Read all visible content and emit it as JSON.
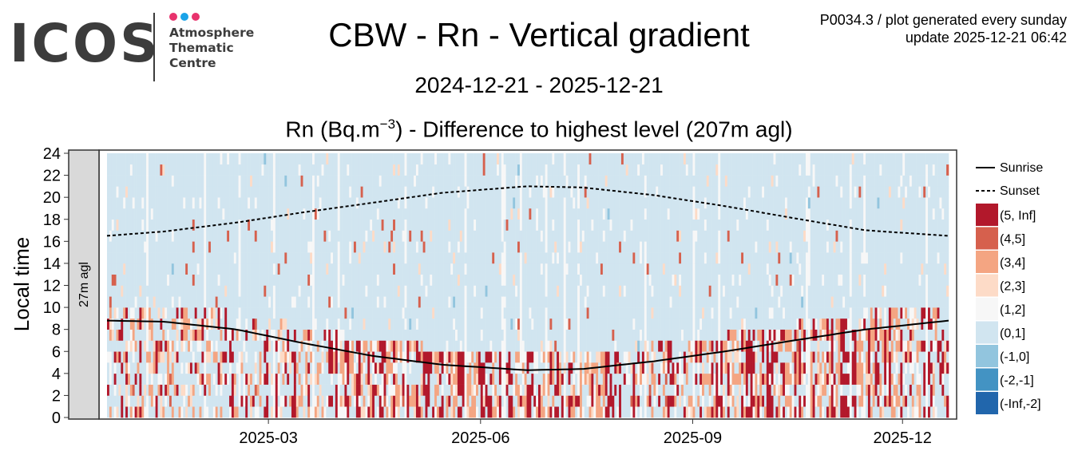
{
  "logo": {
    "text": "ICOS",
    "lines": [
      "Atmosphere",
      "Thematic",
      "Centre"
    ],
    "dot_colors": [
      "#e8336d",
      "#1aa3e8",
      "#e8336d"
    ]
  },
  "header": {
    "title": "CBW - Rn - Vertical gradient",
    "date_range": "2024-12-21 - 2025-12-21",
    "subtitle_pre": "Rn (Bq.m",
    "subtitle_sup": "−3",
    "subtitle_post": ") - Difference to highest level (207m agl)",
    "note_line1": "P0034.3 / plot generated every sunday",
    "note_line2": "update  2025-12-21 06:42"
  },
  "chart_data": {
    "type": "heatmap",
    "title": "CBW - Rn - Vertical gradient",
    "xlabel": "",
    "ylabel": "Local time",
    "facet_label": "27m agl",
    "xlim": [
      "2024-12-21",
      "2025-12-21"
    ],
    "ylim": [
      0,
      24
    ],
    "y_ticks": [
      0,
      2,
      4,
      6,
      8,
      10,
      12,
      14,
      16,
      18,
      20,
      22,
      24
    ],
    "x_ticks": [
      {
        "date": "2025-03-01",
        "label": "2025-03"
      },
      {
        "date": "2025-06-01",
        "label": "2025-06"
      },
      {
        "date": "2025-09-01",
        "label": "2025-09"
      },
      {
        "date": "2025-12-01",
        "label": "2025-12"
      }
    ],
    "legend": {
      "lines": [
        {
          "label": "Sunrise",
          "style": "solid"
        },
        {
          "label": "Sunset",
          "style": "dashed"
        }
      ],
      "bins": [
        {
          "label": "(5, Inf]",
          "color": "#b2182b"
        },
        {
          "label": "(4,5]",
          "color": "#d6604d"
        },
        {
          "label": "(3,4]",
          "color": "#f4a582"
        },
        {
          "label": "(2,3]",
          "color": "#fddbc7"
        },
        {
          "label": "(1,2]",
          "color": "#f7f7f7"
        },
        {
          "label": "(0,1]",
          "color": "#d1e5f0"
        },
        {
          "label": "(-1,0]",
          "color": "#92c5de"
        },
        {
          "label": "(-2,-1]",
          "color": "#4393c3"
        },
        {
          "label": "(-Inf,-2]",
          "color": "#2166ac"
        }
      ]
    },
    "sunrise": [
      {
        "date": "2024-12-21",
        "hour": 8.8
      },
      {
        "date": "2025-01-15",
        "hour": 8.7
      },
      {
        "date": "2025-02-15",
        "hour": 8.0
      },
      {
        "date": "2025-03-15",
        "hour": 6.8
      },
      {
        "date": "2025-04-15",
        "hour": 5.6
      },
      {
        "date": "2025-05-15",
        "hour": 4.8
      },
      {
        "date": "2025-06-21",
        "hour": 4.3
      },
      {
        "date": "2025-07-15",
        "hour": 4.4
      },
      {
        "date": "2025-08-15",
        "hour": 5.1
      },
      {
        "date": "2025-09-15",
        "hour": 6.0
      },
      {
        "date": "2025-10-15",
        "hour": 7.0
      },
      {
        "date": "2025-11-15",
        "hour": 8.0
      },
      {
        "date": "2025-12-21",
        "hour": 8.8
      }
    ],
    "sunset": [
      {
        "date": "2024-12-21",
        "hour": 16.5
      },
      {
        "date": "2025-01-15",
        "hour": 16.9
      },
      {
        "date": "2025-02-15",
        "hour": 17.7
      },
      {
        "date": "2025-03-15",
        "hour": 18.6
      },
      {
        "date": "2025-04-15",
        "hour": 19.5
      },
      {
        "date": "2025-05-15",
        "hour": 20.4
      },
      {
        "date": "2025-06-21",
        "hour": 21.0
      },
      {
        "date": "2025-07-15",
        "hour": 20.9
      },
      {
        "date": "2025-08-15",
        "hour": 20.2
      },
      {
        "date": "2025-09-15",
        "hour": 19.2
      },
      {
        "date": "2025-10-15",
        "hour": 18.1
      },
      {
        "date": "2025-11-15",
        "hour": 17.0
      },
      {
        "date": "2025-12-21",
        "hour": 16.5
      }
    ],
    "cell_pattern": {
      "days": 365,
      "hours": 24,
      "default_bin": "(0,1]",
      "night_hotspot_months": [
        "2025-04",
        "2025-05",
        "2025-06",
        "2025-07",
        "2025-09",
        "2025-10",
        "2025-11"
      ]
    }
  }
}
